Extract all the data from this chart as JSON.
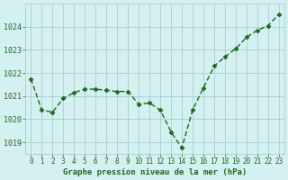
{
  "x": [
    0,
    1,
    2,
    3,
    4,
    5,
    6,
    7,
    8,
    9,
    10,
    11,
    12,
    13,
    14,
    15,
    16,
    17,
    18,
    19,
    20,
    21,
    22,
    23
  ],
  "y": [
    1021.75,
    1020.4,
    1020.3,
    1020.9,
    1021.15,
    1021.3,
    1021.3,
    1021.25,
    1021.2,
    1021.2,
    1020.65,
    1020.7,
    1020.4,
    1019.45,
    1018.75,
    1020.4,
    1021.35,
    1022.3,
    1022.7,
    1023.05,
    1023.55,
    1023.85,
    1024.05,
    1024.55
  ],
  "line_color": "#1a6b1a",
  "marker_color": "#1a6b1a",
  "bg_color": "#d4f0f0",
  "grid_color": "#a0c8c8",
  "xlabel": "Graphe pression niveau de la mer (hPa)",
  "xlabel_color": "#1a6b1a",
  "tick_color": "#1a6b1a",
  "ylim": [
    1018.5,
    1025.0
  ],
  "yticks": [
    1019,
    1020,
    1021,
    1022,
    1023,
    1024
  ],
  "xticks": [
    0,
    1,
    2,
    3,
    4,
    5,
    6,
    7,
    8,
    9,
    10,
    11,
    12,
    13,
    14,
    15,
    16,
    17,
    18,
    19,
    20,
    21,
    22,
    23
  ],
  "xtick_labels": [
    "0",
    "1",
    "2",
    "3",
    "4",
    "5",
    "6",
    "7",
    "8",
    "9",
    "10",
    "11",
    "12",
    "13",
    "14",
    "15",
    "16",
    "17",
    "18",
    "19",
    "20",
    "21",
    "22",
    "23"
  ]
}
